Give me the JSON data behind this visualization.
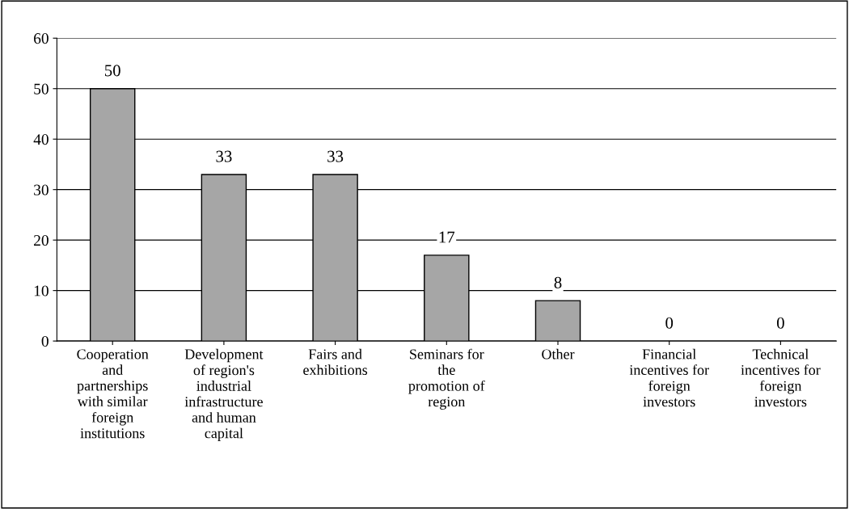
{
  "chart_data": {
    "type": "bar",
    "categories": [
      "Cooperation\nand\npartnerships\nwith similar\nforeign\ninstitutions",
      "Development\nof region's\nindustrial\ninfrastructure\nand human\ncapital",
      "Fairs and\nexhibitions",
      "Seminars for\nthe\npromotion of\nregion",
      "Other",
      "Financial\nincentives for\nforeign\ninvestors",
      "Technical\nincentives for\nforeign\ninvestors"
    ],
    "values": [
      50,
      33,
      33,
      17,
      8,
      0,
      0
    ],
    "color": "#a6a6a6",
    "ylim": [
      0,
      60
    ],
    "yticks": [
      0,
      10,
      20,
      30,
      40,
      50,
      60
    ],
    "grid": "y",
    "data_labels": true
  }
}
